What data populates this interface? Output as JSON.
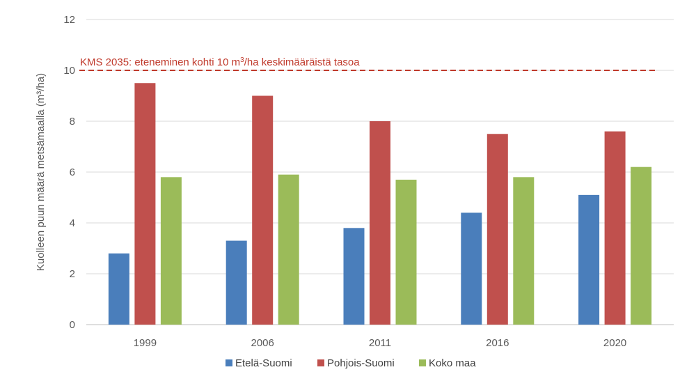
{
  "chart_data": {
    "type": "bar",
    "title": "",
    "xlabel": "",
    "ylabel": "Kuolleen puun määrä metsämaalla (m³/ha)",
    "ylim": [
      0,
      12
    ],
    "yticks": [
      0,
      2,
      4,
      6,
      8,
      10,
      12
    ],
    "grid": true,
    "legend_position": "bottom",
    "categories": [
      "1999",
      "2006",
      "2011",
      "2016",
      "2020"
    ],
    "series": [
      {
        "name": "Etelä-Suomi",
        "color": "#4a7ebb",
        "values": [
          2.8,
          3.3,
          3.8,
          4.4,
          5.1
        ]
      },
      {
        "name": "Pohjois-Suomi",
        "color": "#c0504d",
        "values": [
          9.5,
          9.0,
          8.0,
          7.5,
          7.6
        ]
      },
      {
        "name": "Koko maa",
        "color": "#9bbb59",
        "values": [
          5.8,
          5.9,
          5.7,
          5.8,
          6.2
        ]
      }
    ],
    "reference_line": {
      "value": 10,
      "color": "#c0392b",
      "style": "dashed",
      "label_part1": "KMS 2035: eteneminen  kohti  10 m",
      "label_sup": "3",
      "label_part2": "/ha  keskimääräistä tasoa"
    }
  }
}
